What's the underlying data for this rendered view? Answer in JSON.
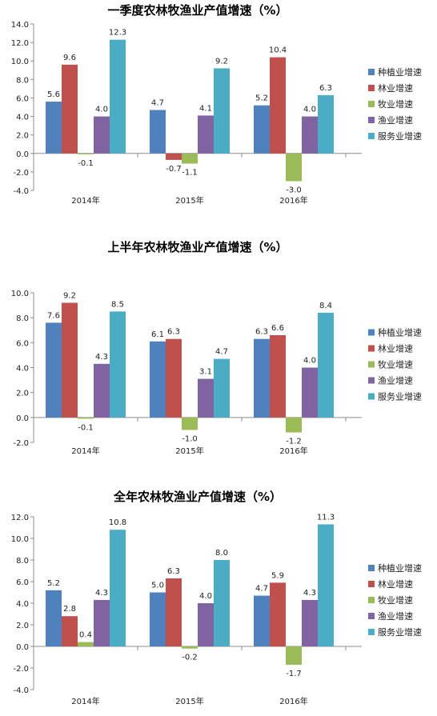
{
  "colors": {
    "series": [
      "#4f81bd",
      "#c0504d",
      "#9bbb59",
      "#8064a2",
      "#4bacc6"
    ],
    "axis": "#8c8c8c"
  },
  "chart_data": [
    {
      "type": "bar",
      "title": "一季度农林牧渔业产值增速（%）",
      "categories": [
        "2014年",
        "2015年",
        "2016年"
      ],
      "ylim": [
        -4.0,
        14.0
      ],
      "yticks": [
        "-4.0",
        "-2.0",
        "0.0",
        "2.0",
        "4.0",
        "6.0",
        "8.0",
        "10.0",
        "12.0",
        "14.0"
      ],
      "grid": false,
      "legend_position": "right",
      "series": [
        {
          "name": "种植业增速",
          "values": [
            5.6,
            4.7,
            5.2
          ],
          "labels": [
            "5.6",
            "4.7",
            "5.2"
          ]
        },
        {
          "name": "林业增速",
          "values": [
            9.6,
            -0.7,
            10.4
          ],
          "labels": [
            "9.6",
            "-0.7",
            "10.4"
          ]
        },
        {
          "name": "牧业增速",
          "values": [
            -0.1,
            -1.1,
            -3.0
          ],
          "labels": [
            "-0.1",
            "-1.1",
            "-3.0"
          ]
        },
        {
          "name": "渔业增速",
          "values": [
            4.0,
            4.1,
            4.0
          ],
          "labels": [
            "4.0",
            "4.1",
            "4.0"
          ]
        },
        {
          "name": "服务业增速",
          "values": [
            12.3,
            9.2,
            6.3
          ],
          "labels": [
            "12.3",
            "9.2",
            "6.3"
          ]
        }
      ]
    },
    {
      "type": "bar",
      "title": "上半年农林牧渔业产值增速（%）",
      "categories": [
        "2014年",
        "2015年",
        "2016年"
      ],
      "ylim": [
        -2.0,
        10.0
      ],
      "yticks": [
        "-2.0",
        "0.0",
        "2.0",
        "4.0",
        "6.0",
        "8.0",
        "10.0"
      ],
      "grid": false,
      "legend_position": "right",
      "series": [
        {
          "name": "种植业增速",
          "values": [
            7.6,
            6.1,
            6.3
          ],
          "labels": [
            "7.6",
            "6.1",
            "6.3"
          ]
        },
        {
          "name": "林业增速",
          "values": [
            9.2,
            6.3,
            6.6
          ],
          "labels": [
            "9.2",
            "6.3",
            "6.6"
          ]
        },
        {
          "name": "牧业增速",
          "values": [
            -0.1,
            -1.0,
            -1.2
          ],
          "labels": [
            "-0.1",
            "-1.0",
            "-1.2"
          ]
        },
        {
          "name": "渔业增速",
          "values": [
            4.3,
            3.1,
            4.0
          ],
          "labels": [
            "4.3",
            "3.1",
            "4.0"
          ]
        },
        {
          "name": "服务业增速",
          "values": [
            8.5,
            4.7,
            8.4
          ],
          "labels": [
            "8.5",
            "4.7",
            "8.4"
          ]
        }
      ]
    },
    {
      "type": "bar",
      "title": "全年农林牧渔业产值增速（%）",
      "categories": [
        "2014年",
        "2015年",
        "2016年"
      ],
      "ylim": [
        -4.0,
        12.0
      ],
      "yticks": [
        "-4.0",
        "-2.0",
        "0.0",
        "2.0",
        "4.0",
        "6.0",
        "8.0",
        "10.0",
        "12.0"
      ],
      "grid": false,
      "legend_position": "right",
      "series": [
        {
          "name": "种植业增速",
          "values": [
            5.2,
            5.0,
            4.7
          ],
          "labels": [
            "5.2",
            "5.0",
            "4.7"
          ]
        },
        {
          "name": "林业增速",
          "values": [
            2.8,
            6.3,
            5.9
          ],
          "labels": [
            "2.8",
            "6.3",
            "5.9"
          ]
        },
        {
          "name": "牧业增速",
          "values": [
            0.4,
            -0.2,
            -1.7
          ],
          "labels": [
            "0.4",
            "-0.2",
            "-1.7"
          ]
        },
        {
          "name": "渔业增速",
          "values": [
            4.3,
            4.0,
            4.3
          ],
          "labels": [
            "4.3",
            "4.0",
            "4.3"
          ]
        },
        {
          "name": "服务业增速",
          "values": [
            10.8,
            8.0,
            11.3
          ],
          "labels": [
            "10.8",
            "8.0",
            "11.3"
          ]
        }
      ]
    }
  ]
}
